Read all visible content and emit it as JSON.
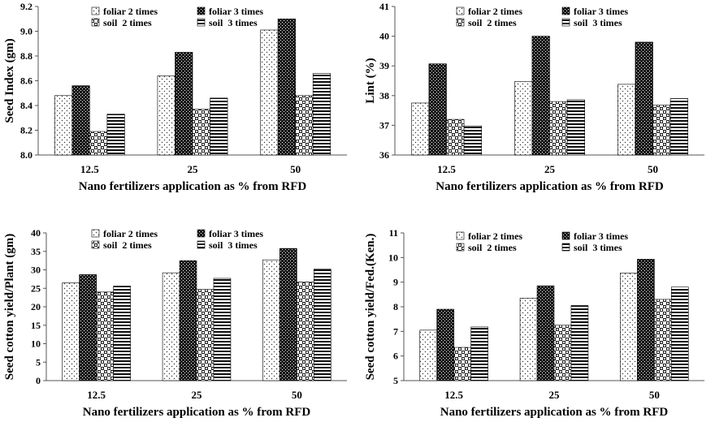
{
  "chart_data": [
    {
      "type": "bar",
      "categories": [
        "12.5",
        "25",
        "50"
      ],
      "series": [
        {
          "name": "foliar 2 times",
          "values": [
            8.48,
            8.64,
            9.01
          ]
        },
        {
          "name": "foliar 3 times",
          "values": [
            8.56,
            8.83,
            9.1
          ]
        },
        {
          "name": "soil  2 times",
          "values": [
            8.19,
            8.37,
            8.48
          ]
        },
        {
          "name": "soil  3 times",
          "values": [
            8.33,
            8.46,
            8.66
          ]
        }
      ],
      "ylabel": "Seed Index (gm)",
      "xlabel": "Nano fertilizers application as % from RFD",
      "ylim": [
        8.0,
        9.2
      ],
      "yticks": [
        "8.0",
        "8.2",
        "8.4",
        "8.6",
        "8.8",
        "9.0",
        "9.2"
      ],
      "ytick_values": [
        8.0,
        8.2,
        8.4,
        8.6,
        8.8,
        9.0,
        9.2
      ],
      "grid": false,
      "legend_position": "top"
    },
    {
      "type": "bar",
      "categories": [
        "12.5",
        "25",
        "50"
      ],
      "series": [
        {
          "name": "foliar 2 times",
          "values": [
            37.75,
            38.47,
            38.38
          ]
        },
        {
          "name": "foliar 3 times",
          "values": [
            39.07,
            40.0,
            39.8
          ]
        },
        {
          "name": "soil  2 times",
          "values": [
            37.2,
            37.8,
            37.68
          ]
        },
        {
          "name": "soil  3 times",
          "values": [
            36.98,
            37.86,
            37.9
          ]
        }
      ],
      "ylabel": "Lint (%)",
      "xlabel": "Nano fertilizers application as % from RFD",
      "ylim": [
        36,
        41
      ],
      "yticks": [
        "36",
        "37",
        "38",
        "39",
        "40",
        "41"
      ],
      "ytick_values": [
        36,
        37,
        38,
        39,
        40,
        41
      ],
      "grid": false,
      "legend_position": "top"
    },
    {
      "type": "bar",
      "categories": [
        "12.5",
        "25",
        "50"
      ],
      "series": [
        {
          "name": "foliar 2 times",
          "values": [
            26.5,
            29.2,
            32.7
          ]
        },
        {
          "name": "foliar 3 times",
          "values": [
            28.7,
            32.5,
            35.8
          ]
        },
        {
          "name": "soil  2 times",
          "values": [
            24.0,
            24.7,
            26.7
          ]
        },
        {
          "name": "soil  3 times",
          "values": [
            25.6,
            27.7,
            30.2
          ]
        }
      ],
      "ylabel": "Seed cotton yield/Plant (gm)",
      "xlabel": "Nano fertilizers application as % from RFD",
      "ylim": [
        0,
        40
      ],
      "yticks": [
        "0",
        "5",
        "10",
        "15",
        "20",
        "25",
        "30",
        "35",
        "40"
      ],
      "ytick_values": [
        0,
        5,
        10,
        15,
        20,
        25,
        30,
        35,
        40
      ],
      "grid": false,
      "legend_position": "top"
    },
    {
      "type": "bar",
      "categories": [
        "12.5",
        "25",
        "50"
      ],
      "series": [
        {
          "name": "foliar 2 times",
          "values": [
            7.05,
            8.35,
            9.37
          ]
        },
        {
          "name": "foliar 3 times",
          "values": [
            7.9,
            8.85,
            9.93
          ]
        },
        {
          "name": "soil  2 times",
          "values": [
            6.35,
            7.25,
            8.3
          ]
        },
        {
          "name": "soil  3 times",
          "values": [
            7.18,
            8.05,
            8.8
          ]
        }
      ],
      "ylabel": "Seed cotton yield/Fed.(Ken.)",
      "xlabel": "Nano fertilizers application as % from RFD",
      "ylim": [
        5,
        11
      ],
      "yticks": [
        "5",
        "6",
        "7",
        "8",
        "9",
        "10",
        "11"
      ],
      "ytick_values": [
        5,
        6,
        7,
        8,
        9,
        10,
        11
      ],
      "grid": false,
      "legend_position": "top"
    }
  ]
}
